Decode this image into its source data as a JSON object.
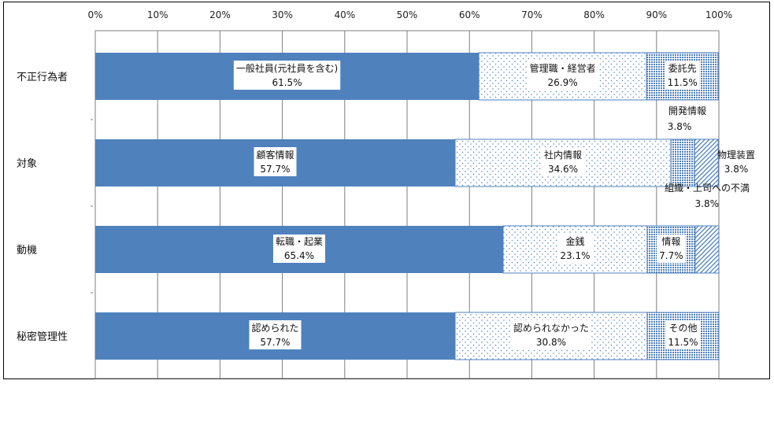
{
  "chart_data": {
    "type": "bar",
    "orientation": "horizontal",
    "stacked": "percent",
    "xlim": [
      0,
      100
    ],
    "x_ticks": [
      "0%",
      "10%",
      "20%",
      "30%",
      "40%",
      "50%",
      "60%",
      "70%",
      "80%",
      "90%",
      "100%"
    ],
    "x_axis_position": "top",
    "grid": true,
    "colors": {
      "solid": "#4f81bd",
      "dots": "#4f81bd",
      "hatch": "#4f81bd",
      "border": "#000000"
    },
    "categories": [
      "不正行為者",
      "対象",
      "動機",
      "秘密管理性"
    ],
    "bars": [
      {
        "category": "不正行為者",
        "segments": [
          {
            "label": "一般社員(元社員を含む)",
            "value": 61.5,
            "value_label": "61.5%",
            "pattern": "solid"
          },
          {
            "label": "管理職・経営者",
            "value": 26.9,
            "value_label": "26.9%",
            "pattern": "dots"
          },
          {
            "label": "委託先",
            "value": 11.5,
            "value_label": "11.5%",
            "pattern": "grid"
          }
        ]
      },
      {
        "category": "対象",
        "segments": [
          {
            "label": "顧客情報",
            "value": 57.7,
            "value_label": "57.7%",
            "pattern": "solid"
          },
          {
            "label": "社内情報",
            "value": 34.6,
            "value_label": "34.6%",
            "pattern": "dots"
          },
          {
            "label": "開発情報",
            "value": 3.8,
            "value_label": "3.8%",
            "pattern": "grid"
          },
          {
            "label": "物理装置",
            "value": 3.8,
            "value_label": "3.8%",
            "pattern": "hatch"
          }
        ]
      },
      {
        "category": "動機",
        "segments": [
          {
            "label": "転職・起業",
            "value": 65.4,
            "value_label": "65.4%",
            "pattern": "solid"
          },
          {
            "label": "金銭",
            "value": 23.1,
            "value_label": "23.1%",
            "pattern": "dots"
          },
          {
            "label": "情報",
            "value": 7.7,
            "value_label": "7.7%",
            "pattern": "grid"
          },
          {
            "label": "組織・上司への不満",
            "value": 3.8,
            "value_label": "3.8%",
            "pattern": "hatch"
          }
        ]
      },
      {
        "category": "秘密管理性",
        "segments": [
          {
            "label": "認められた",
            "value": 57.7,
            "value_label": "57.7%",
            "pattern": "solid"
          },
          {
            "label": "認められなかった",
            "value": 30.8,
            "value_label": "30.8%",
            "pattern": "dots"
          },
          {
            "label": "その他",
            "value": 11.5,
            "value_label": "11.5%",
            "pattern": "grid"
          }
        ]
      }
    ]
  }
}
